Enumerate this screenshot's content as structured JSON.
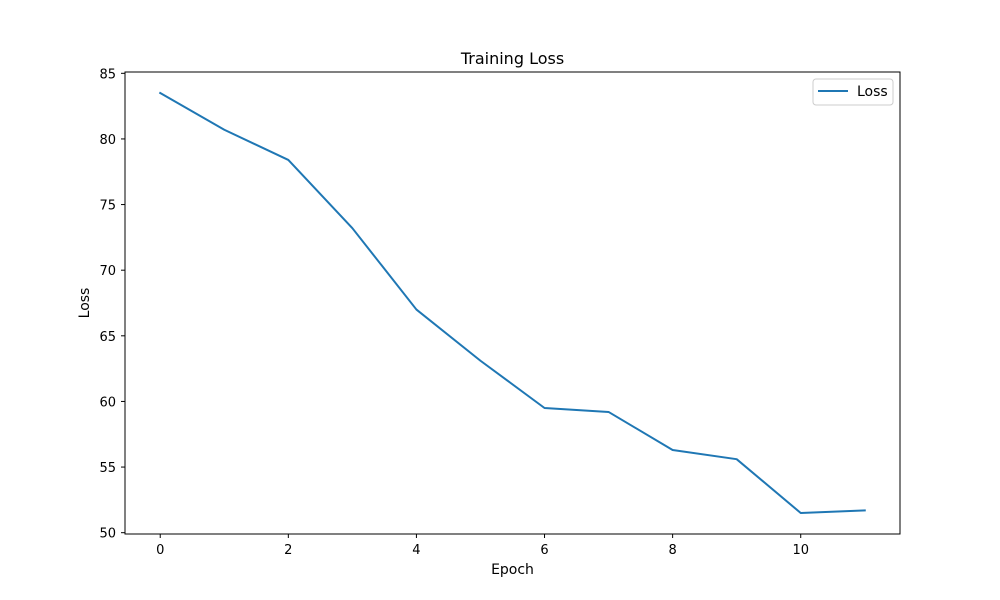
{
  "chart_data": {
    "type": "line",
    "title": "Training Loss",
    "xlabel": "Epoch",
    "ylabel": "Loss",
    "xlim": [
      -0.55,
      11.55
    ],
    "ylim": [
      49.9,
      85.1
    ],
    "x_ticks": [
      0,
      2,
      4,
      6,
      8,
      10
    ],
    "y_ticks": [
      50,
      55,
      60,
      65,
      70,
      75,
      80,
      85
    ],
    "grid": false,
    "legend_position": "top-right",
    "x": [
      0,
      1,
      2,
      3,
      4,
      5,
      6,
      7,
      8,
      9,
      10,
      11
    ],
    "series": [
      {
        "name": "Loss",
        "color": "#1f77b4",
        "values": [
          83.5,
          80.7,
          78.4,
          73.2,
          67.0,
          63.1,
          59.5,
          59.2,
          56.3,
          55.6,
          51.5,
          51.7
        ]
      }
    ]
  }
}
